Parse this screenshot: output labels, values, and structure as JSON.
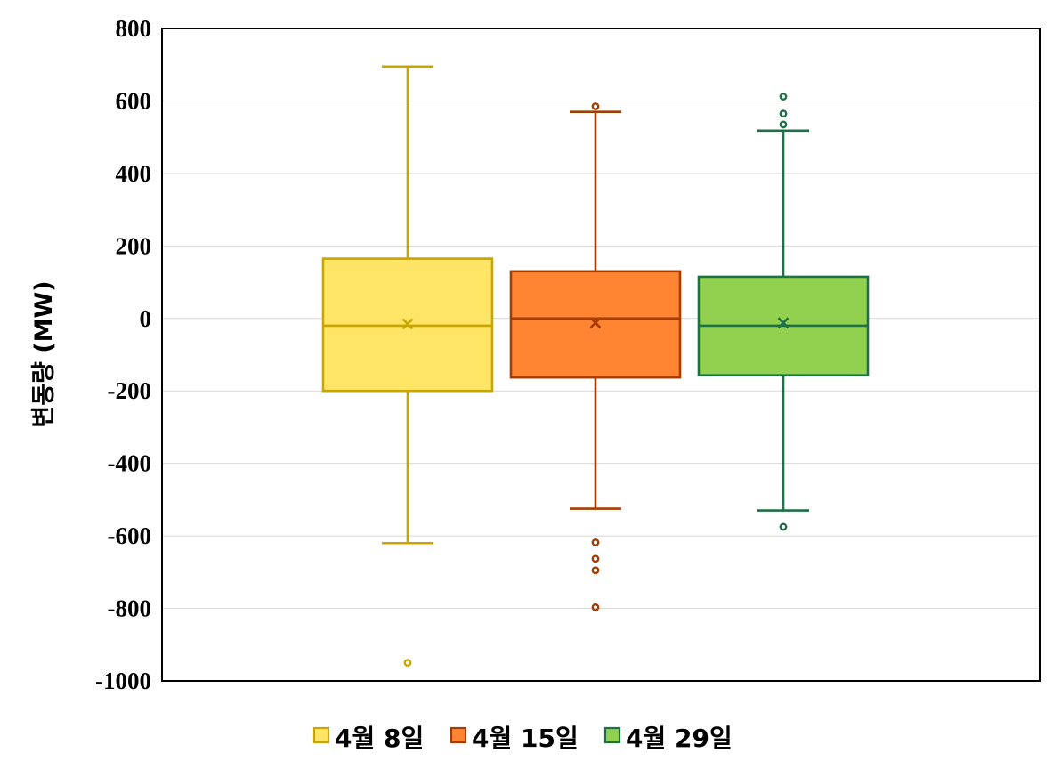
{
  "chart_data": {
    "type": "box",
    "title": "",
    "xlabel": "",
    "ylabel": "변동량 (MW)",
    "ylim": [
      -1000,
      800
    ],
    "yticks": [
      800,
      600,
      400,
      200,
      0,
      -200,
      -400,
      -600,
      -800,
      -1000
    ],
    "ytick_labels": [
      "800",
      "600",
      "400",
      "200",
      "0",
      "-200",
      "-400",
      "-600",
      "-800",
      "-1000"
    ],
    "grid": true,
    "legend_position": "bottom",
    "series": [
      {
        "name": "4월 8일",
        "fill": "#FFE566",
        "stroke": "#C8A500",
        "min": -620,
        "q1": -200,
        "median": -20,
        "mean": -15,
        "q3": 165,
        "max": 695,
        "outliers": [
          -950
        ]
      },
      {
        "name": "4월 15일",
        "fill": "#FF8533",
        "stroke": "#A63D00",
        "min": -525,
        "q1": -163,
        "median": 0,
        "mean": -12,
        "q3": 130,
        "max": 570,
        "outliers": [
          585,
          -618,
          -663,
          -695,
          -797
        ]
      },
      {
        "name": "4월 29일",
        "fill": "#92D050",
        "stroke": "#1E7045",
        "min": -530,
        "q1": -157,
        "median": -20,
        "mean": -12,
        "q3": 115,
        "max": 518,
        "outliers": [
          612,
          565,
          535,
          -575
        ]
      }
    ]
  }
}
